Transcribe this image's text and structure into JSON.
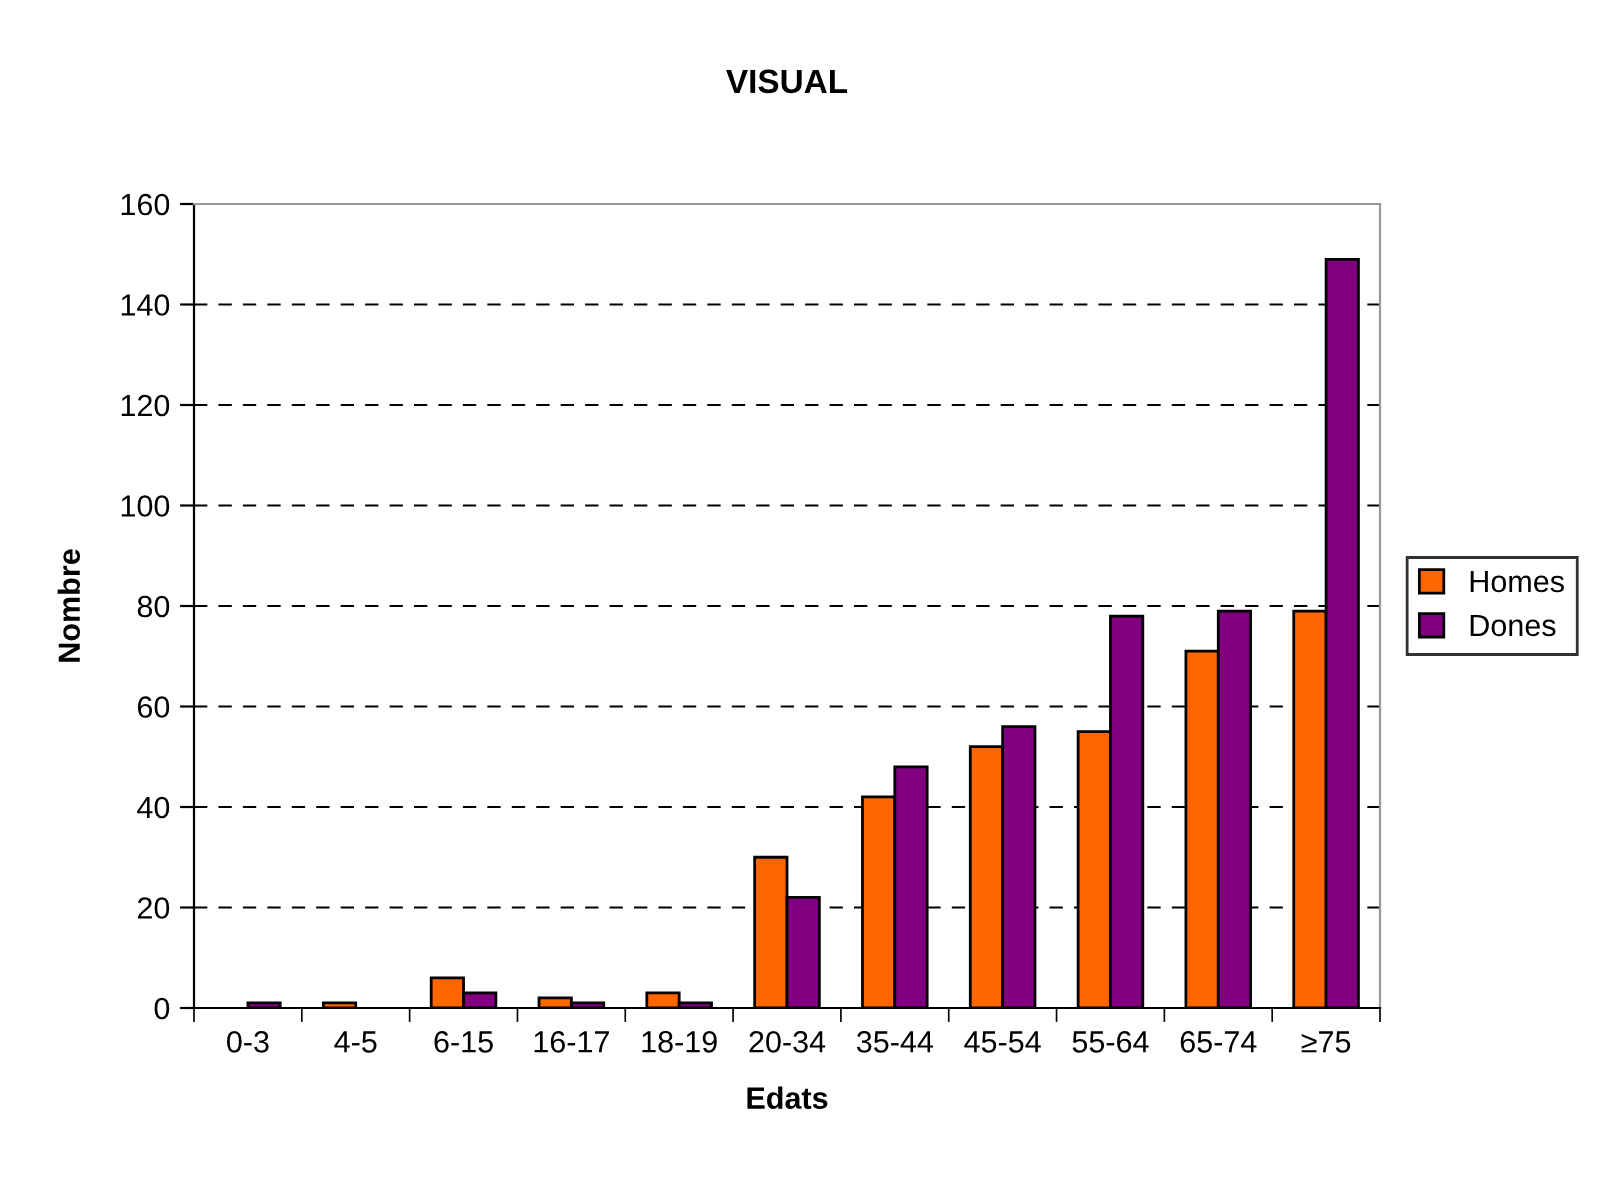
{
  "chart_data": {
    "type": "bar",
    "title": "VISUAL",
    "xlabel": "Edats",
    "ylabel": "Nombre",
    "categories": [
      "0-3",
      "4-5",
      "6-15",
      "16-17",
      "18-19",
      "20-34",
      "35-44",
      "45-54",
      "55-64",
      "65-74",
      "≥75"
    ],
    "series": [
      {
        "name": "Homes",
        "color": "#ff6600",
        "values": [
          0,
          1,
          6,
          2,
          3,
          30,
          42,
          52,
          55,
          71,
          79
        ]
      },
      {
        "name": "Dones",
        "color": "#800080",
        "values": [
          1,
          0,
          3,
          1,
          1,
          22,
          48,
          56,
          78,
          79,
          149
        ]
      }
    ],
    "ylim": [
      0,
      160
    ],
    "yticks": [
      0,
      20,
      40,
      60,
      80,
      100,
      120,
      140,
      160
    ],
    "grid": "y",
    "legend": "right"
  }
}
